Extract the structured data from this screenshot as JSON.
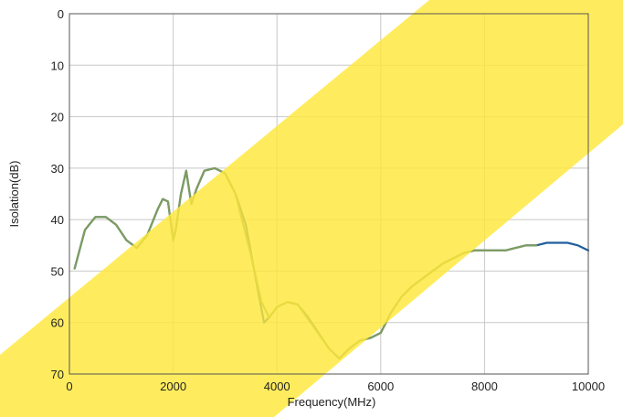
{
  "chart_data": {
    "type": "line",
    "title": "",
    "xlabel": "Frequency(MHz)",
    "ylabel": "Isolation(dB)",
    "xlim": [
      0,
      10000
    ],
    "ylim": [
      0,
      70
    ],
    "y_inverted": true,
    "grid": true,
    "x_ticks": [
      "0",
      "2000",
      "4000",
      "6000",
      "8000",
      "10000"
    ],
    "y_ticks": [
      "0",
      "10",
      "20",
      "30",
      "40",
      "50",
      "60",
      "70"
    ],
    "series": [
      {
        "color": "#1f5f9e",
        "x": [
          100,
          300,
          500,
          700,
          900,
          1100,
          1300,
          1500,
          1700,
          1800,
          1900,
          2000,
          2050,
          2150,
          2250,
          2350,
          2450,
          2600,
          2800,
          3000,
          3200,
          3400,
          3600,
          3750,
          3850,
          4000,
          4200,
          4400,
          4600,
          4800,
          5000,
          5200,
          5400,
          5600,
          5800,
          6000,
          6200,
          6400,
          6600,
          6800,
          7000,
          7200,
          7400,
          7600,
          7800,
          8000,
          8200,
          8400,
          8600,
          8800,
          9000,
          9200,
          9400,
          9600,
          9800,
          10000
        ],
        "y": [
          49.5,
          42,
          39.5,
          39.5,
          41,
          44,
          45.5,
          43,
          38,
          36,
          36.5,
          44,
          42,
          35,
          30.5,
          37,
          34,
          30.5,
          30,
          31,
          35,
          41,
          52,
          60,
          59,
          57,
          56,
          56.5,
          59,
          62,
          65,
          67,
          65,
          63.5,
          63,
          62,
          58,
          55,
          53,
          51.5,
          50,
          48.5,
          47.5,
          46.5,
          46,
          46,
          46,
          46,
          45.5,
          45,
          45,
          44.5,
          44.5,
          44.5,
          45,
          46
        ]
      },
      {
        "color": "#7f9c5e",
        "x": [
          100,
          300,
          500,
          700,
          900,
          1100,
          1300,
          1500,
          1700,
          1800,
          1900,
          2000,
          2050,
          2150,
          2250,
          2350,
          2450,
          2600,
          2800,
          3000,
          3200,
          3500,
          3700,
          3850,
          4000,
          4200,
          4400,
          5000,
          5200,
          5400,
          5600,
          5800,
          6000,
          6200,
          6400,
          6600,
          6800,
          7000,
          7200,
          7400,
          7600,
          7800,
          8000,
          8200,
          8400,
          8600,
          8800,
          9000
        ],
        "y": [
          49.5,
          42,
          39.5,
          39.5,
          41,
          44,
          45.5,
          43,
          38,
          36,
          36.5,
          44,
          42,
          35,
          30.5,
          37,
          34,
          30.5,
          30,
          31,
          35,
          47,
          56,
          59,
          57,
          56,
          56.5,
          65,
          67,
          65,
          63.5,
          63,
          62,
          58,
          55,
          53,
          51.5,
          50,
          48.5,
          47.5,
          46.5,
          46,
          46,
          46,
          46,
          45.5,
          45,
          45
        ]
      }
    ]
  }
}
